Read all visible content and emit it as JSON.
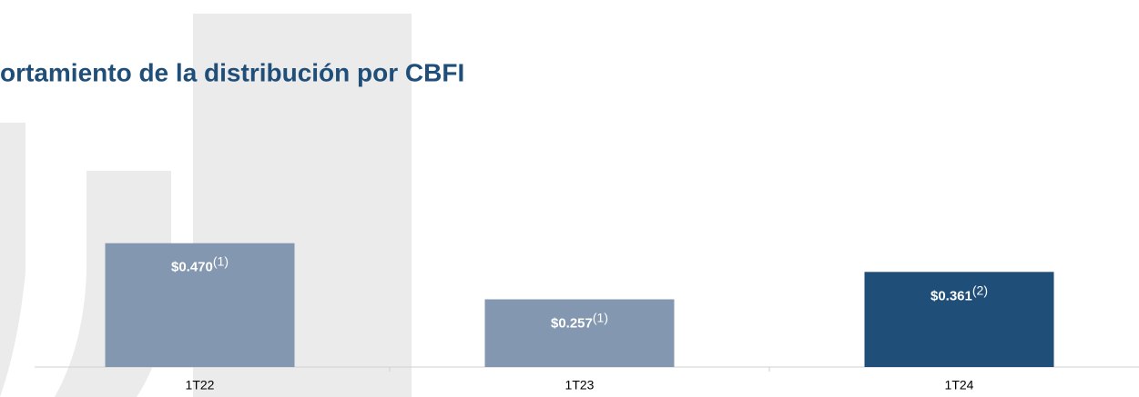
{
  "chart_data": {
    "type": "bar",
    "title": "ortamiento de la distribución por CBFI",
    "categories": [
      "1T22",
      "1T23",
      "1T24"
    ],
    "values": [
      0.47,
      0.257,
      0.361
    ],
    "value_labels": [
      "$0.470",
      "$0.257",
      "$0.361"
    ],
    "notes": [
      "(1)",
      "(1)",
      "(2)"
    ],
    "colors": [
      "#8497b0",
      "#8497b0",
      "#1f4e79"
    ]
  }
}
